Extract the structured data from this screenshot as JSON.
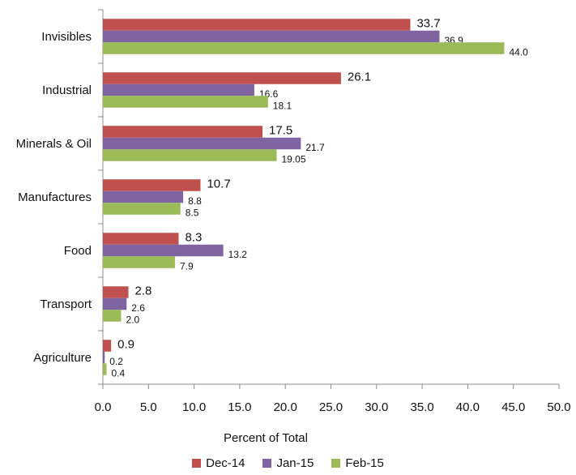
{
  "chart_data": {
    "type": "bar",
    "orientation": "horizontal",
    "categories": [
      "Invisibles",
      "Industrial",
      "Minerals & Oil",
      "Manufactures",
      "Food",
      "Transport",
      "Agriculture"
    ],
    "series": [
      {
        "name": "Dec-14",
        "color": "#c0504d",
        "values": [
          33.7,
          26.1,
          17.5,
          10.7,
          8.3,
          2.8,
          0.9
        ],
        "labels": [
          "33.7",
          "26.1",
          "17.5",
          "10.7",
          "8.3",
          "2.8",
          "0.9"
        ]
      },
      {
        "name": "Jan-15",
        "color": "#8064a2",
        "values": [
          36.9,
          16.6,
          21.7,
          8.8,
          13.2,
          2.6,
          0.2
        ],
        "labels": [
          "36.9",
          "16.6",
          "21.7",
          "8.8",
          "13.2",
          "2.6",
          "0.2"
        ]
      },
      {
        "name": "Feb-15",
        "color": "#9bbb59",
        "values": [
          44.0,
          18.1,
          19.05,
          8.5,
          7.9,
          2.0,
          0.4
        ],
        "labels": [
          "44.0",
          "18.1",
          "19.05",
          "8.5",
          "7.9",
          "2.0",
          "0.4"
        ]
      }
    ],
    "xlabel": "Percent of Total",
    "xlim": [
      0,
      50
    ],
    "xticks": [
      "0.0",
      "5.0",
      "10.0",
      "15.0",
      "20.0",
      "25.0",
      "30.0",
      "35.0",
      "40.0",
      "45.0",
      "50.0"
    ],
    "grid": false,
    "legend_position": "bottom"
  }
}
